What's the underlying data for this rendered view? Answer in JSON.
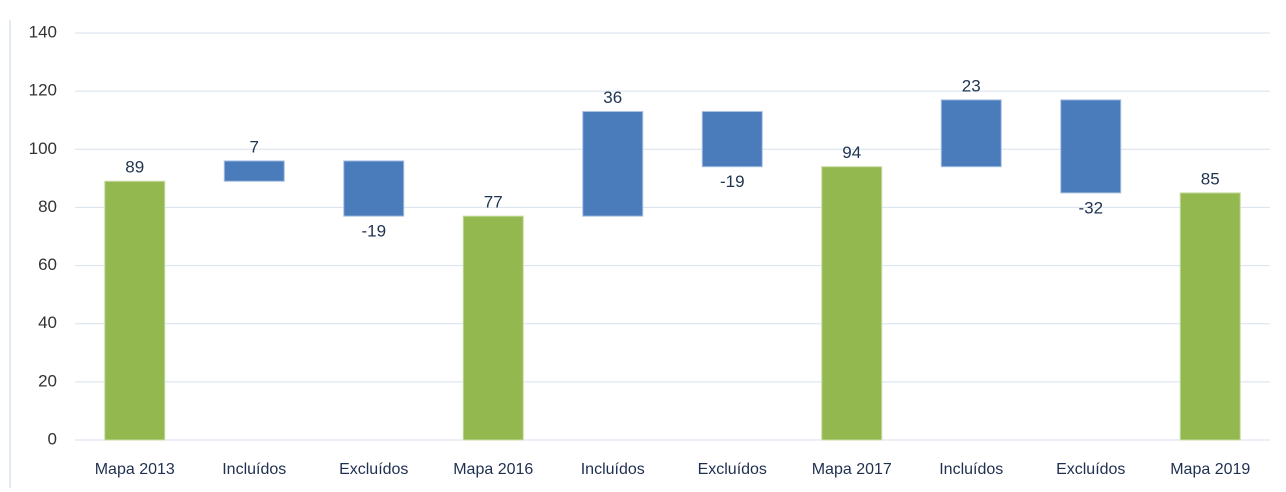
{
  "chart_data": {
    "type": "waterfall",
    "categories": [
      "Mapa 2013",
      "Incluídos",
      "Excluídos",
      "Mapa 2016",
      "Incluídos",
      "Excluídos",
      "Mapa 2017",
      "Incluídos",
      "Excluídos",
      "Mapa 2019"
    ],
    "values": [
      89,
      7,
      -19,
      77,
      36,
      -19,
      94,
      23,
      -32,
      85
    ],
    "totals": [
      true,
      false,
      false,
      true,
      false,
      false,
      true,
      false,
      false,
      true
    ],
    "total_color": "#93b850",
    "change_color": "#4a7bbb",
    "ylim": [
      0,
      140
    ],
    "yticks": [
      0,
      20,
      40,
      60,
      80,
      100,
      120,
      140
    ],
    "grid": true
  }
}
